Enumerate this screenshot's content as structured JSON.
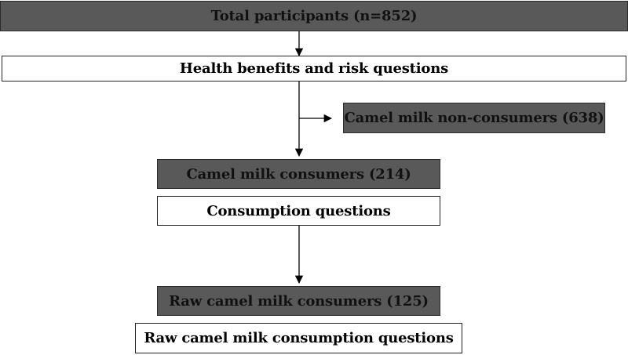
{
  "flowchart": {
    "total_participants": "Total participants (n=852)",
    "health_questions": "Health benefits and risk questions",
    "non_consumers": "Camel milk non-consumers (638)",
    "consumers": "Camel milk consumers (214)",
    "consumption_questions": "Consumption questions",
    "raw_consumers": "Raw camel milk consumers (125)",
    "raw_consumption_questions": "Raw camel milk consumption questions"
  },
  "colors": {
    "dark_box_fill": "#595959",
    "light_box_fill": "#ffffff",
    "line": "#000000"
  }
}
